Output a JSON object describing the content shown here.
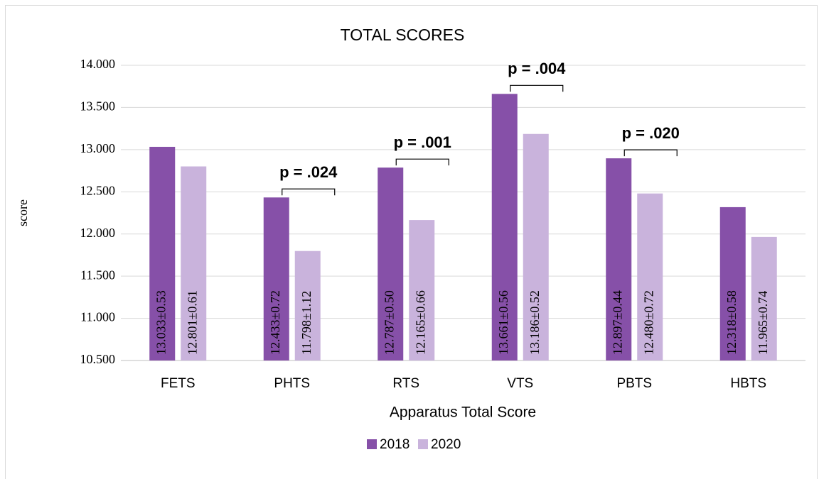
{
  "chart_data": {
    "type": "bar",
    "title": "TOTAL SCORES",
    "x_label": "Apparatus Total Score",
    "y_label": "score",
    "categories": [
      "FETS",
      "PHTS",
      "RTS",
      "VTS",
      "PBTS",
      "HBTS"
    ],
    "series": [
      {
        "name": "2018",
        "color": "#8650a8",
        "values": [
          13.033,
          12.433,
          12.787,
          13.661,
          12.897,
          12.318
        ],
        "value_labels": [
          "13.033±0.53",
          "12.433±0.72",
          "12.787±0.50",
          "13.661±0.56",
          "12.897±0.44",
          "12.318±0.58"
        ]
      },
      {
        "name": "2020",
        "color": "#c9b3dc",
        "values": [
          12.801,
          11.798,
          12.165,
          13.186,
          12.48,
          11.965
        ],
        "value_labels": [
          "12.801±0.61",
          "11.798±1.12",
          "12.165±0.66",
          "13.186±0.52",
          "12.480±0.72",
          "11.965±0.74"
        ]
      }
    ],
    "ylim": [
      10.5,
      14
    ],
    "yticks": [
      {
        "value": 10.5,
        "label": "10.500"
      },
      {
        "value": 11,
        "label": "11.000"
      },
      {
        "value": 11.5,
        "label": "11.500"
      },
      {
        "value": 12,
        "label": "12.000"
      },
      {
        "value": 12.5,
        "label": "12.500"
      },
      {
        "value": 13,
        "label": "13.000"
      },
      {
        "value": 13.5,
        "label": "13.500"
      },
      {
        "value": 14,
        "label": "14.000"
      }
    ],
    "grid": true,
    "legend": "bottom",
    "annotations": [
      {
        "text": "p = .024",
        "category": "PHTS"
      },
      {
        "text": "p = .001",
        "category": "RTS"
      },
      {
        "text": "p = .004",
        "category": "VTS"
      },
      {
        "text": "p = .020",
        "category": "PBTS"
      }
    ]
  }
}
